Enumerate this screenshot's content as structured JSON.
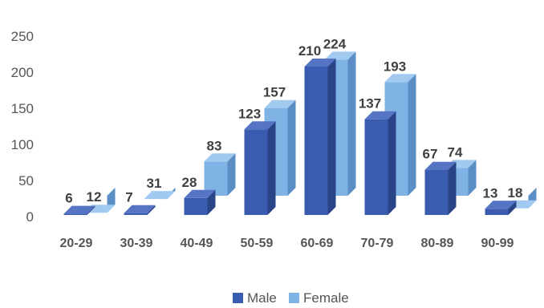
{
  "chart_data": {
    "type": "bar",
    "style": "3d-clustered-column",
    "categories": [
      "20-29",
      "30-39",
      "40-49",
      "50-59",
      "60-69",
      "70-79",
      "80-89",
      "90-99"
    ],
    "series": [
      {
        "name": "Male",
        "values": [
          6,
          7,
          28,
          123,
          210,
          137,
          67,
          13
        ],
        "color": "#3a5cb0",
        "side_color": "#2a4488",
        "top_color": "#5575c4"
      },
      {
        "name": "Female",
        "values": [
          12,
          31,
          83,
          157,
          224,
          193,
          74,
          18
        ],
        "color": "#7fb3e6",
        "side_color": "#5b8ec4",
        "top_color": "#a2c9ef"
      }
    ],
    "yticks": [
      0,
      50,
      100,
      150,
      200,
      250
    ],
    "ylim": [
      0,
      250
    ],
    "grid": false,
    "legend": "bottom-center"
  }
}
